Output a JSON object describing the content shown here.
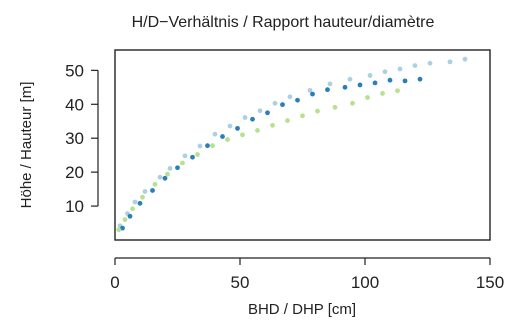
{
  "chart_data": {
    "type": "scatter",
    "title": "H/D−Verhältnis / Rapport hauteur/diamètre",
    "xlabel": "BHD / DHP [cm]",
    "ylabel": "Höhe / Hauteur [m]",
    "xlim": [
      0,
      150
    ],
    "ylim": [
      0,
      56
    ],
    "xticks": [
      0,
      50,
      100,
      150
    ],
    "yticks": [
      10,
      20,
      30,
      40,
      50
    ],
    "grid": false,
    "legend": "none",
    "series": [
      {
        "color": "#a6cee3",
        "x": [
          2,
          5,
          8,
          12,
          18,
          22,
          28,
          34,
          40,
          46,
          52,
          58,
          64,
          70,
          78,
          86,
          94,
          102,
          108,
          114,
          120,
          126,
          134,
          140
        ],
        "y": [
          4.2,
          7.8,
          11.2,
          14.3,
          18.5,
          21.1,
          24.8,
          27.7,
          31.2,
          33.6,
          36.1,
          38.1,
          40.3,
          42.2,
          44.1,
          46.0,
          47.4,
          48.5,
          49.6,
          50.4,
          51.4,
          52.1,
          52.5,
          53.3
        ]
      },
      {
        "color": "#1f78b4",
        "x": [
          3,
          6,
          10,
          15,
          20,
          25,
          31,
          37,
          43,
          49,
          55,
          61,
          67,
          73,
          79,
          85,
          92,
          98,
          104,
          110,
          116,
          122
        ],
        "y": [
          3.5,
          7.0,
          10.8,
          14.6,
          18.2,
          21.3,
          24.4,
          27.8,
          30.5,
          32.9,
          35.6,
          37.5,
          39.9,
          41.2,
          43.0,
          44.3,
          45.0,
          45.7,
          46.3,
          47.1,
          46.9,
          47.4
        ]
      },
      {
        "color": "#b2df8a",
        "x": [
          1.5,
          4,
          7,
          11,
          16,
          21,
          27,
          33,
          39,
          45,
          51,
          57,
          63,
          69,
          75,
          81,
          88,
          95,
          101,
          107,
          113
        ],
        "y": [
          3.0,
          6.0,
          9.2,
          12.6,
          16.4,
          19.4,
          22.7,
          25.2,
          27.8,
          29.6,
          31.0,
          32.3,
          33.8,
          35.2,
          36.6,
          38.0,
          39.1,
          40.3,
          42.0,
          43.2,
          44.0
        ]
      }
    ]
  }
}
